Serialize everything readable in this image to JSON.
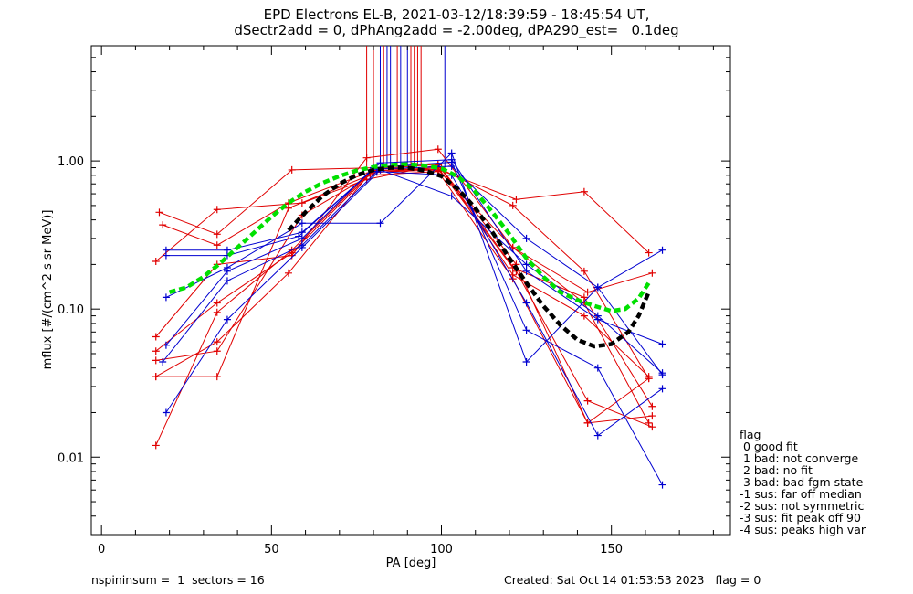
{
  "title_line1": "EPD Electrons EL-B, 2021-03-12/18:39:59 - 18:45:54 UT,",
  "title_line2": "dSectr2add = 0, dPhAng2add = -2.00deg, dPA290_est=   0.1deg",
  "footer_left": "nspininsum =  1  sectors = 16",
  "footer_right": "Created: Sat Oct 14 01:53:53 2023   flag = 0",
  "legend": {
    "title": "flag",
    "items": [
      " 0 good fit",
      " 1 bad: not converge",
      " 2 bad: no fit",
      " 3 bad: bad fgm state",
      "-1 sus: far off median",
      "-2 sus: not symmetric",
      "-3 sus: fit peak off 90",
      "-4 sus: peaks high var"
    ]
  },
  "colors": {
    "red": "#e00000",
    "blue": "#0000d0",
    "green": "#00e000",
    "black": "#000000"
  },
  "chart_data": {
    "type": "line",
    "xlabel": "PA [deg]",
    "ylabel": "mflux [#/(cm^2 s sr MeV)]",
    "x_range": [
      -3,
      185
    ],
    "y_range": [
      0.003,
      6.0
    ],
    "y_scale": "log",
    "x_ticks": [
      0,
      50,
      100,
      150
    ],
    "x_tick_labels": [
      "0",
      "50",
      "100",
      "150"
    ],
    "y_ticks": [
      0.01,
      0.1,
      1.0
    ],
    "y_tick_labels": [
      "0.01",
      "0.10",
      "1.00"
    ],
    "series": [
      {
        "color": "red",
        "points": [
          [
            16,
            0.045
          ],
          [
            34,
            0.052
          ],
          [
            59,
            0.43
          ],
          [
            79,
            0.8
          ],
          [
            99,
            0.85
          ],
          [
            121,
            0.16
          ],
          [
            143,
            0.017
          ],
          [
            161,
            0.034
          ]
        ]
      },
      {
        "color": "red",
        "points": [
          [
            16,
            0.035
          ],
          [
            34,
            0.035
          ],
          [
            55,
            0.48
          ],
          [
            81,
            0.84
          ],
          [
            99,
            0.87
          ],
          [
            121,
            0.26
          ],
          [
            143,
            0.13
          ],
          [
            162,
            0.175
          ]
        ]
      },
      {
        "color": "red",
        "points": [
          [
            17,
            0.45
          ],
          [
            34,
            0.32
          ],
          [
            56,
            0.87
          ],
          [
            81,
            0.9
          ],
          [
            100,
            0.86
          ],
          [
            122,
            0.55
          ],
          [
            142,
            0.62
          ],
          [
            161,
            0.24
          ]
        ]
      },
      {
        "color": "red",
        "points": [
          [
            18,
            0.37
          ],
          [
            34,
            0.27
          ],
          [
            55,
            0.52
          ],
          [
            80,
            0.86
          ],
          [
            100,
            0.88
          ],
          [
            121,
            0.5
          ],
          [
            142,
            0.18
          ],
          [
            161,
            0.034
          ]
        ]
      },
      {
        "color": "red",
        "points": [
          [
            16,
            0.21
          ],
          [
            34,
            0.47
          ],
          [
            59,
            0.52
          ],
          [
            78,
            0.75
          ],
          [
            99,
            0.94
          ],
          [
            122,
            0.18
          ],
          [
            143,
            0.024
          ],
          [
            162,
            0.016
          ]
        ]
      },
      {
        "color": "red",
        "points": [
          [
            16,
            0.065
          ],
          [
            34,
            0.2
          ],
          [
            56,
            0.23
          ],
          [
            78,
            1.05
          ],
          [
            99,
            1.2
          ],
          [
            121,
            0.26
          ],
          [
            142,
            0.11
          ],
          [
            161,
            0.017
          ]
        ]
      },
      {
        "color": "red",
        "points": [
          [
            16,
            0.012
          ],
          [
            34,
            0.095
          ],
          [
            56,
            0.25
          ],
          [
            80,
            0.88
          ],
          [
            99,
            0.95
          ],
          [
            122,
            0.2
          ],
          [
            143,
            0.017
          ],
          [
            162,
            0.019
          ]
        ]
      },
      {
        "color": "red",
        "points": [
          [
            16,
            0.035
          ],
          [
            34,
            0.06
          ],
          [
            55,
            0.175
          ],
          [
            79,
            0.83
          ],
          [
            99,
            0.9
          ],
          [
            121,
            0.19
          ],
          [
            142,
            0.12
          ],
          [
            162,
            0.022
          ]
        ]
      },
      {
        "color": "red",
        "points": [
          [
            16,
            0.052
          ],
          [
            34,
            0.11
          ],
          [
            56,
            0.24
          ],
          [
            80,
            0.86
          ],
          [
            100,
            0.9
          ],
          [
            121,
            0.17
          ],
          [
            142,
            0.09
          ],
          [
            161,
            0.035
          ]
        ]
      },
      {
        "color": "blue",
        "points": [
          [
            19,
            0.25
          ],
          [
            37,
            0.25
          ],
          [
            59,
            0.33
          ],
          [
            80,
            0.88
          ],
          [
            103,
            0.92
          ],
          [
            125,
            0.3
          ],
          [
            146,
            0.14
          ],
          [
            165,
            0.25
          ]
        ]
      },
      {
        "color": "blue",
        "points": [
          [
            19,
            0.23
          ],
          [
            37,
            0.23
          ],
          [
            58,
            0.31
          ],
          [
            82,
            0.97
          ],
          [
            103,
            1.02
          ],
          [
            125,
            0.18
          ],
          [
            146,
            0.085
          ],
          [
            165,
            0.058
          ]
        ]
      },
      {
        "color": "blue",
        "points": [
          [
            19,
            0.12
          ],
          [
            37,
            0.19
          ],
          [
            59,
            0.38
          ],
          [
            82,
            0.38
          ],
          [
            103,
            1.13
          ],
          [
            125,
            0.044
          ],
          [
            146,
            0.14
          ],
          [
            165,
            0.036
          ]
        ]
      },
      {
        "color": "blue",
        "points": [
          [
            19,
            0.057
          ],
          [
            37,
            0.18
          ],
          [
            59,
            0.3
          ],
          [
            80,
            0.9
          ],
          [
            103,
            0.98
          ],
          [
            125,
            0.072
          ],
          [
            146,
            0.04
          ],
          [
            165,
            0.0065
          ]
        ]
      },
      {
        "color": "blue",
        "points": [
          [
            18,
            0.044
          ],
          [
            37,
            0.155
          ],
          [
            59,
            0.27
          ],
          [
            81,
            0.85
          ],
          [
            103,
            0.8
          ],
          [
            125,
            0.11
          ],
          [
            146,
            0.014
          ],
          [
            165,
            0.029
          ]
        ]
      },
      {
        "color": "blue",
        "points": [
          [
            19,
            0.02
          ],
          [
            37,
            0.085
          ],
          [
            59,
            0.26
          ],
          [
            82,
            0.87
          ],
          [
            103,
            0.58
          ],
          [
            125,
            0.2
          ],
          [
            146,
            0.09
          ],
          [
            165,
            0.037
          ]
        ]
      }
    ],
    "spikes": [
      {
        "color": "red",
        "x": [
          78,
          80,
          83,
          87,
          89,
          91,
          92,
          93,
          94
        ]
      },
      {
        "color": "blue",
        "x": [
          82,
          84,
          85,
          88,
          90,
          101
        ]
      }
    ],
    "fits": [
      {
        "color": "green",
        "style": "dashed",
        "points": [
          [
            20,
            0.13
          ],
          [
            25,
            0.14
          ],
          [
            30,
            0.165
          ],
          [
            35,
            0.205
          ],
          [
            40,
            0.26
          ],
          [
            45,
            0.33
          ],
          [
            50,
            0.42
          ],
          [
            55,
            0.52
          ],
          [
            60,
            0.62
          ],
          [
            65,
            0.71
          ],
          [
            70,
            0.79
          ],
          [
            75,
            0.86
          ],
          [
            80,
            0.91
          ],
          [
            85,
            0.94
          ],
          [
            90,
            0.95
          ],
          [
            95,
            0.93
          ],
          [
            100,
            0.89
          ],
          [
            105,
            0.78
          ],
          [
            110,
            0.62
          ],
          [
            115,
            0.45
          ],
          [
            120,
            0.32
          ],
          [
            125,
            0.22
          ],
          [
            130,
            0.165
          ],
          [
            135,
            0.13
          ],
          [
            140,
            0.115
          ],
          [
            145,
            0.105
          ],
          [
            150,
            0.097
          ],
          [
            154,
            0.1
          ],
          [
            158,
            0.118
          ],
          [
            161,
            0.15
          ]
        ]
      },
      {
        "color": "black",
        "style": "dashed",
        "points": [
          [
            55,
            0.34
          ],
          [
            60,
            0.45
          ],
          [
            65,
            0.58
          ],
          [
            70,
            0.7
          ],
          [
            75,
            0.8
          ],
          [
            80,
            0.87
          ],
          [
            85,
            0.9
          ],
          [
            90,
            0.9
          ],
          [
            95,
            0.86
          ],
          [
            100,
            0.79
          ],
          [
            105,
            0.64
          ],
          [
            110,
            0.48
          ],
          [
            115,
            0.33
          ],
          [
            120,
            0.22
          ],
          [
            125,
            0.15
          ],
          [
            130,
            0.105
          ],
          [
            135,
            0.078
          ],
          [
            140,
            0.062
          ],
          [
            145,
            0.056
          ],
          [
            150,
            0.058
          ],
          [
            155,
            0.07
          ],
          [
            158,
            0.09
          ],
          [
            161,
            0.13
          ]
        ]
      }
    ]
  }
}
